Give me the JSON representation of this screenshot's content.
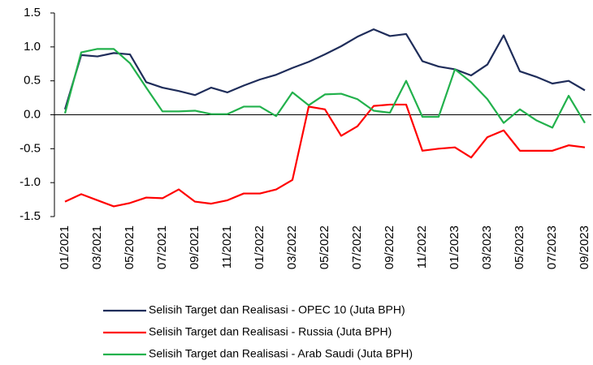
{
  "chart_data": {
    "type": "line",
    "categories": [
      "01/2021",
      null,
      "03/2021",
      null,
      "05/2021",
      null,
      "07/2021",
      null,
      "09/2021",
      null,
      "11/2021",
      null,
      "01/2022",
      null,
      "03/2022",
      null,
      "05/2022",
      null,
      "07/2022",
      null,
      "09/2022",
      null,
      "11/2022",
      null,
      "01/2023",
      null,
      "03/2023",
      null,
      "05/2023",
      null,
      "07/2023",
      null,
      "09/2023"
    ],
    "series": [
      {
        "name": "Selisih Target dan Realisasi - OPEC 10 (Juta BPH)",
        "color": "#1f2d5a",
        "values": [
          0.08,
          0.88,
          0.86,
          0.91,
          0.89,
          0.48,
          0.4,
          0.35,
          0.29,
          0.4,
          0.33,
          0.43,
          0.52,
          0.59,
          0.69,
          0.78,
          0.89,
          1.01,
          1.15,
          1.26,
          1.16,
          1.19,
          0.79,
          0.71,
          0.67,
          0.58,
          0.74,
          1.17,
          0.64,
          0.56,
          0.46,
          0.5,
          0.36
        ]
      },
      {
        "name": "Selisih Target dan Realisasi - Russia (Juta BPH)",
        "color": "#ff0000",
        "values": [
          -1.28,
          -1.17,
          -1.26,
          -1.35,
          -1.3,
          -1.22,
          -1.23,
          -1.1,
          -1.28,
          -1.31,
          -1.26,
          -1.16,
          -1.16,
          -1.1,
          -0.96,
          0.12,
          0.08,
          -0.31,
          -0.17,
          0.13,
          0.15,
          0.15,
          -0.53,
          -0.5,
          -0.48,
          -0.63,
          -0.33,
          -0.23,
          -0.53,
          -0.53,
          -0.53,
          -0.45,
          -0.48
        ]
      },
      {
        "name": "Selisih Target dan Realisasi - Arab Saudi (Juta BPH)",
        "color": "#22b14c",
        "values": [
          0.02,
          0.92,
          0.97,
          0.97,
          0.76,
          0.4,
          0.05,
          0.05,
          0.06,
          0.01,
          0.01,
          0.12,
          0.12,
          -0.02,
          0.33,
          0.14,
          0.3,
          0.31,
          0.23,
          0.06,
          0.03,
          0.5,
          -0.03,
          -0.03,
          0.67,
          0.48,
          0.23,
          -0.12,
          0.08,
          -0.08,
          -0.19,
          0.28,
          -0.12
        ]
      }
    ],
    "ylim": [
      -1.5,
      1.5
    ],
    "yticks": [
      1.5,
      {
        "value": 1.0,
        "label": "1.0"
      },
      0.5,
      {
        "value": 0,
        "label": "0.0"
      },
      -0.5,
      {
        "value": -1.0,
        "label": "-1.0"
      },
      -1.5
    ],
    "grid": false
  }
}
